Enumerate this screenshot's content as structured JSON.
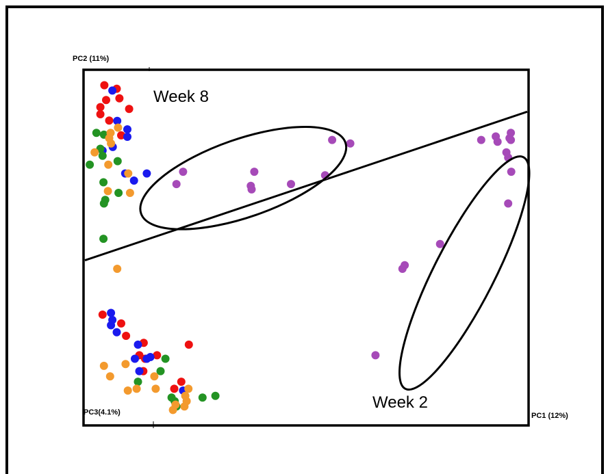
{
  "chart_data": {
    "type": "scatter",
    "title": "",
    "axes": {
      "pc1_label": "PC1 (12%)",
      "pc2_label": "PC2 (11%)",
      "pc3_label": "PC3(4.1%)"
    },
    "xlim": [
      0,
      100
    ],
    "ylim": [
      0,
      100
    ],
    "grid": false,
    "group_labels": [
      {
        "text": "Week 8",
        "x": 16,
        "y": 92
      },
      {
        "text": "Week 2",
        "x": 67,
        "y": 5
      }
    ],
    "separator_line": {
      "from": [
        0,
        46.4
      ],
      "to": [
        100,
        88.5
      ]
    },
    "ellipses": [
      {
        "cx": 35.8,
        "cy": 69.7,
        "rx": 50,
        "ry": 21,
        "angle": -19.2
      },
      {
        "cx": 85.8,
        "cy": 42.8,
        "rx": 44,
        "ry": 190,
        "angle": 27
      }
    ],
    "colors": {
      "red": "#ee1111",
      "blue": "#1a1aee",
      "green": "#239323",
      "orange": "#f39a2e",
      "purple": "#a64ab8"
    },
    "series": [
      {
        "color": "red",
        "values": [
          [
            4.4,
            96
          ],
          [
            7.2,
            95
          ],
          [
            4.8,
            91.8
          ],
          [
            7.8,
            92.3
          ],
          [
            3.5,
            89.8
          ],
          [
            10,
            89.3
          ],
          [
            3.5,
            87.8
          ],
          [
            5.5,
            86
          ],
          [
            8.2,
            81.8
          ],
          [
            8.2,
            28.5
          ],
          [
            4,
            31
          ],
          [
            13.3,
            23
          ],
          [
            13.6,
            18.5
          ],
          [
            9.3,
            25
          ],
          [
            12.3,
            19.5
          ],
          [
            16.3,
            19.5
          ],
          [
            13.2,
            15
          ],
          [
            21.8,
            12
          ],
          [
            20.2,
            10
          ],
          [
            23.5,
            22.5
          ]
        ]
      },
      {
        "color": "blue",
        "values": [
          [
            6.2,
            94.5
          ],
          [
            7.3,
            85.9
          ],
          [
            9.6,
            81.4
          ],
          [
            9.6,
            83.5
          ],
          [
            6.3,
            78.5
          ],
          [
            4,
            77.5
          ],
          [
            9.1,
            71
          ],
          [
            14,
            71
          ],
          [
            11.1,
            69
          ],
          [
            5.9,
            31.5
          ],
          [
            6.2,
            29.5
          ],
          [
            7.2,
            26
          ],
          [
            12,
            22.5
          ],
          [
            14,
            18.5
          ],
          [
            14.8,
            19
          ],
          [
            12.3,
            15
          ],
          [
            5.9,
            28
          ],
          [
            11.3,
            18.5
          ],
          [
            22.2,
            9.5
          ]
        ]
      },
      {
        "color": "green",
        "values": [
          [
            2.6,
            82.5
          ],
          [
            4.3,
            82
          ],
          [
            3.5,
            78
          ],
          [
            4,
            76
          ],
          [
            1.1,
            73.5
          ],
          [
            7.4,
            74.5
          ],
          [
            4.2,
            68.5
          ],
          [
            7.6,
            65.5
          ],
          [
            4.6,
            63.5
          ],
          [
            4.3,
            62.5
          ],
          [
            4.2,
            52.5
          ],
          [
            18.2,
            18.5
          ],
          [
            17.1,
            15
          ],
          [
            12,
            12
          ],
          [
            19.6,
            7.5
          ],
          [
            20.3,
            6.5
          ],
          [
            26.6,
            7.5
          ],
          [
            29.5,
            8
          ],
          [
            20.7,
            5
          ]
        ]
      },
      {
        "color": "orange",
        "values": [
          [
            7.5,
            84
          ],
          [
            5.8,
            82.5
          ],
          [
            5.5,
            81
          ],
          [
            5.9,
            79.5
          ],
          [
            2.2,
            77
          ],
          [
            5.3,
            73.5
          ],
          [
            9.8,
            71
          ],
          [
            5.2,
            66
          ],
          [
            10.2,
            65.5
          ],
          [
            7.3,
            44
          ],
          [
            9.2,
            17
          ],
          [
            4.3,
            16.5
          ],
          [
            5.7,
            13.5
          ],
          [
            15.7,
            13.5
          ],
          [
            11.7,
            10
          ],
          [
            16,
            10
          ],
          [
            23.4,
            10
          ],
          [
            20.5,
            5.5
          ],
          [
            22.7,
            8
          ],
          [
            22.5,
            5
          ],
          [
            23,
            6.5
          ],
          [
            9.7,
            9.5
          ],
          [
            19.9,
            4
          ]
        ]
      },
      {
        "color": "purple",
        "values": [
          [
            22.2,
            71.5
          ],
          [
            20.7,
            68
          ],
          [
            38.3,
            71.5
          ],
          [
            37.5,
            67.5
          ],
          [
            37.7,
            66.5
          ],
          [
            46.6,
            68
          ],
          [
            54.3,
            70.5
          ],
          [
            55.9,
            80.5
          ],
          [
            60,
            79.5
          ],
          [
            89.6,
            80.5
          ],
          [
            92.9,
            81.5
          ],
          [
            93.3,
            80
          ],
          [
            96.3,
            80.5
          ],
          [
            96.3,
            82.5
          ],
          [
            96,
            81
          ],
          [
            95.3,
            77
          ],
          [
            95.7,
            75.5
          ],
          [
            96.4,
            71.5
          ],
          [
            95.7,
            62.5
          ],
          [
            80.3,
            51
          ],
          [
            72.3,
            45
          ],
          [
            71.8,
            44
          ],
          [
            65.7,
            19.5
          ]
        ]
      }
    ]
  }
}
